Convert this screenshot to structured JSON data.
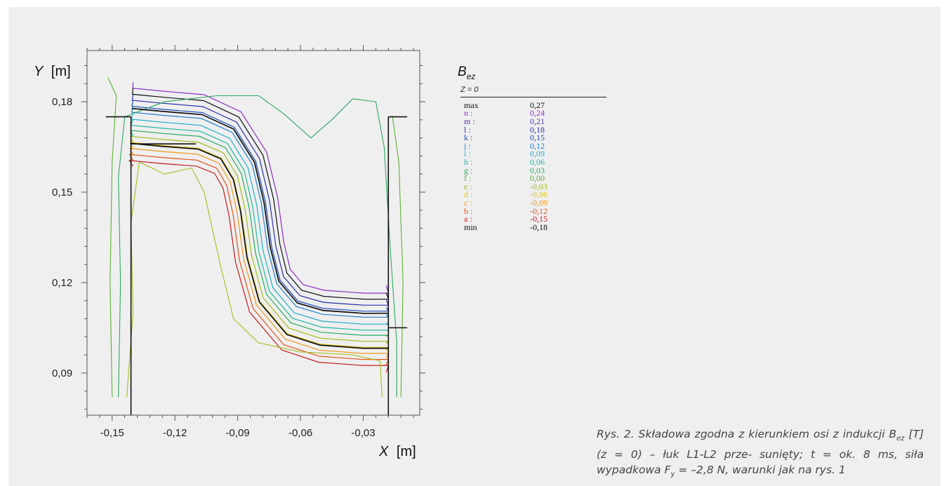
{
  "chart_data": {
    "type": "contour",
    "title": "B_ez",
    "title_main": "B",
    "title_sub": "ez",
    "subtitle": "Z = 0",
    "xlabel": "X [m]",
    "xlabel_var": "X",
    "xlabel_unit": "[m]",
    "ylabel": "Y [m]",
    "ylabel_var": "Y",
    "ylabel_unit": "[m]",
    "xlim": [
      -0.162,
      -0.003
    ],
    "ylim": [
      0.076,
      0.197
    ],
    "xticks": [
      -0.15,
      -0.12,
      -0.09,
      -0.06,
      -0.03
    ],
    "xtick_labels": [
      "-0,15",
      "-0,12",
      "-0,09",
      "-0,06",
      "-0,03"
    ],
    "yticks": [
      0.09,
      0.12,
      0.15,
      0.18
    ],
    "ytick_labels": [
      "0,09",
      "0,12",
      "0,15",
      "0,18"
    ],
    "grid": false,
    "legend_position": "right",
    "levels": [
      {
        "key": "max",
        "value": "0,27",
        "color": "#111111"
      },
      {
        "key": "n :",
        "value": "0,24",
        "color": "#8a2fc4"
      },
      {
        "key": "m :",
        "value": "0,21",
        "color": "#5a2fb8"
      },
      {
        "key": "l :",
        "value": "0,18",
        "color": "#2a2fa8"
      },
      {
        "key": "k :",
        "value": "0,15",
        "color": "#1f4fc0"
      },
      {
        "key": "j :",
        "value": "0,12",
        "color": "#1f7fd0"
      },
      {
        "key": "i :",
        "value": "0,09",
        "color": "#22aecb"
      },
      {
        "key": "h :",
        "value": "0,06",
        "color": "#1fb89f"
      },
      {
        "key": "g :",
        "value": "0,03",
        "color": "#2aaa5f"
      },
      {
        "key": "f :",
        "value": "0,00",
        "color": "#5bb030"
      },
      {
        "key": "e :",
        "value": "-0,03",
        "color": "#a3bd1c"
      },
      {
        "key": "d :",
        "value": "-0,06",
        "color": "#e0c21a"
      },
      {
        "key": "c :",
        "value": "-0,09",
        "color": "#ee9a1c"
      },
      {
        "key": "b :",
        "value": "-0,12",
        "color": "#e0561c"
      },
      {
        "key": "a :",
        "value": "-0,15",
        "color": "#c21e1e"
      },
      {
        "key": "min",
        "value": "-0,18",
        "color": "#111111"
      }
    ],
    "conductor_outline_color": "#111111"
  },
  "caption": {
    "line1": "Rys. 2. Składowa zgodna z kierunkiem osi",
    "line2_pre": "z indukcji B",
    "line2_sub": "ez",
    "line2_post": " [T] (z = 0) – łuk L1-L2 prze-",
    "line3_pre": "sunięty; t = ok. 8 ms, siła wypadkowa F",
    "line3_sub": "y",
    "line3_post": " =",
    "line4": "–2,8 N, warunki jak na rys. 1"
  }
}
